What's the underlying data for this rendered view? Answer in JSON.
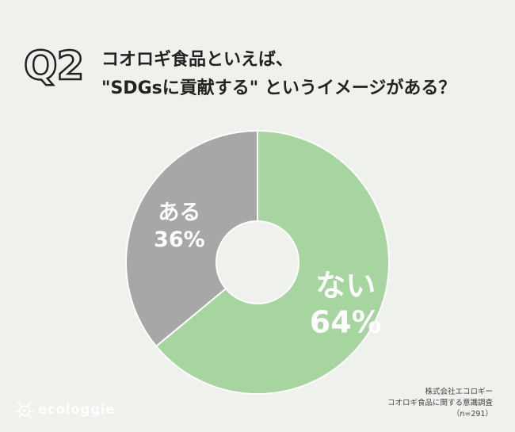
{
  "header": {
    "question_number": "Q2",
    "title_line1": "コオロギ食品といえば、",
    "title_line2": "\"SDGsに貢献する\" というイメージがある？"
  },
  "chart_data": {
    "type": "pie",
    "donut": true,
    "slices": [
      {
        "label": "ない",
        "value": 64,
        "value_text": "64%",
        "color": "#a6d5a0"
      },
      {
        "label": "ある",
        "value": 36,
        "value_text": "36%",
        "color": "#a7a7a7"
      }
    ],
    "start": "top",
    "direction": "clockwise"
  },
  "source": {
    "line1": "株式会社エコロギー",
    "line2": "コオロギ食品に関する意識調査",
    "line3": "（n=291）"
  },
  "brand": {
    "name": "ecologgie",
    "logo_icon": "cricket-logo-icon"
  }
}
